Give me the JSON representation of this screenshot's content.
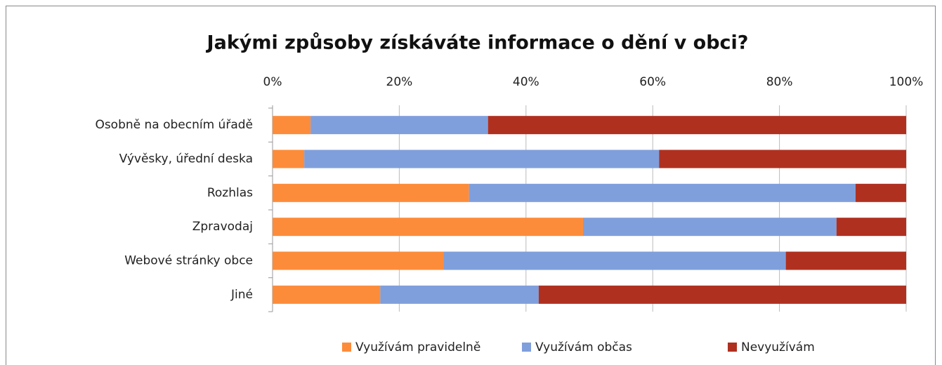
{
  "chart_data": {
    "type": "stacked_barh",
    "title": "Jakými způsoby získáváte informace o dění v obci?",
    "categories": [
      "Osobně na obecním úřadě",
      "Vývěsky, úřední deska",
      "Rozhlas",
      "Zpravodaj",
      "Webové stránky obce",
      "Jiné"
    ],
    "series": [
      {
        "name": "Využívám pravidelně",
        "color": "#fd8c3a",
        "values": [
          6,
          5,
          31,
          49,
          27,
          17
        ]
      },
      {
        "name": "Využívám občas",
        "color": "#7f9fdc",
        "values": [
          28,
          56,
          61,
          40,
          54,
          25
        ]
      },
      {
        "name": "Nevyužívám",
        "color": "#b03020",
        "values": [
          66,
          39,
          8,
          11,
          19,
          58
        ]
      }
    ],
    "xlim": [
      0,
      100
    ],
    "xticks": [
      {
        "value": 0,
        "label": "0%"
      },
      {
        "value": 20,
        "label": "20%"
      },
      {
        "value": 40,
        "label": "40%"
      },
      {
        "value": 60,
        "label": "60%"
      },
      {
        "value": 80,
        "label": "80%"
      },
      {
        "value": 100,
        "label": "100%"
      }
    ],
    "grid": true,
    "legend": "bottom"
  }
}
